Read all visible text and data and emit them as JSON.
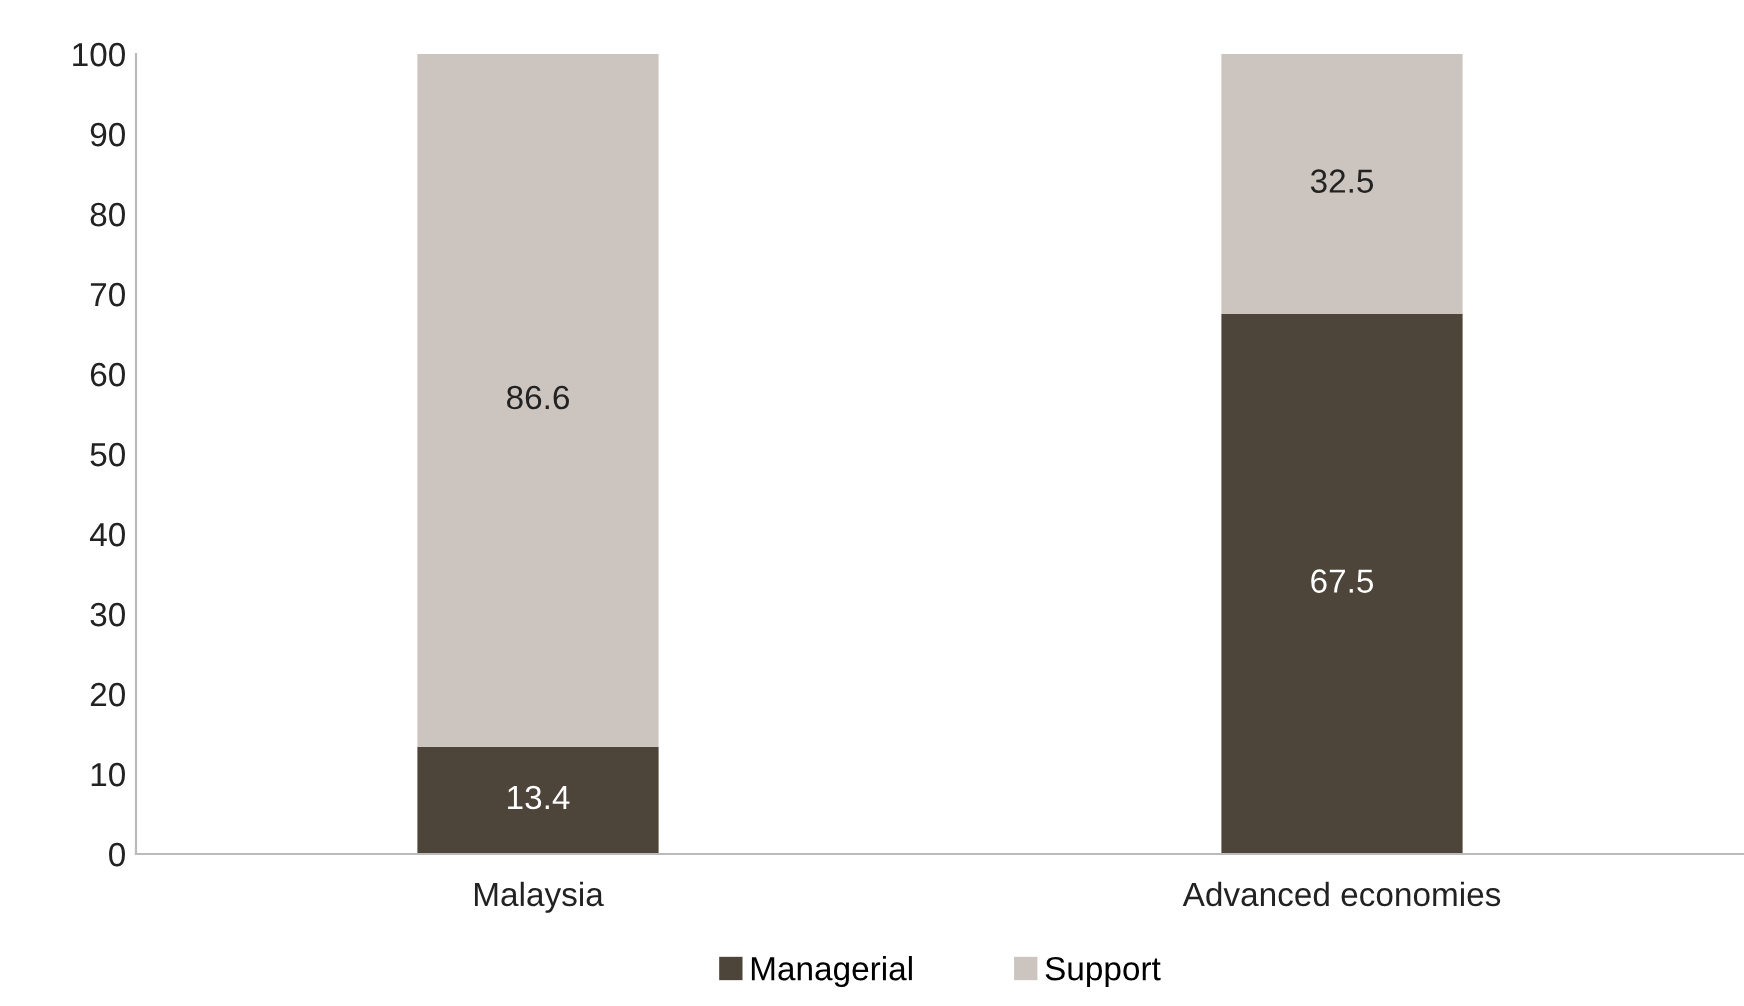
{
  "chart_data": {
    "type": "bar",
    "stacked": true,
    "categories": [
      "Malaysia",
      "Advanced economies"
    ],
    "series": [
      {
        "name": "Managerial",
        "color": "#4d443a",
        "values": [
          13.4,
          67.5
        ]
      },
      {
        "name": "Support",
        "color": "#cbc4bf",
        "values": [
          86.6,
          32.5
        ]
      }
    ],
    "ylim": [
      0,
      100
    ],
    "yticks": [
      0,
      10,
      20,
      30,
      40,
      50,
      60,
      70,
      80,
      90,
      100
    ],
    "grid": false,
    "legend": "bottom",
    "data_labels": true
  }
}
